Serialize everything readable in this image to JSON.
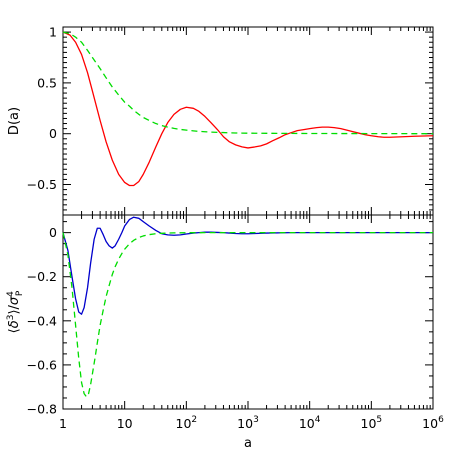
{
  "chart_data": [
    {
      "type": "line",
      "title": "",
      "xlabel": "",
      "ylabel": "D(a)",
      "xscale": "log",
      "xlim": [
        1,
        1000000
      ],
      "ylim": [
        -0.8,
        1.05
      ],
      "x_ticks": [
        1,
        10,
        100,
        1000,
        10000,
        100000,
        1000000
      ],
      "y_ticks": [
        -0.5,
        0,
        0.5,
        1
      ],
      "y_tick_labels": [
        "−0.5",
        "0",
        "0.5",
        "1"
      ],
      "grid": false,
      "legend": "none",
      "series": [
        {
          "color": "#ff0000",
          "dash": "solid",
          "x": [
            1,
            1.3,
            1.6,
            2,
            2.5,
            3,
            4,
            5,
            6.3,
            8,
            10,
            12,
            14,
            17,
            20,
            25,
            32,
            40,
            50,
            63,
            80,
            100,
            130,
            160,
            200,
            250,
            320,
            400,
            500,
            630,
            800,
            1000,
            1300,
            1600,
            2000,
            2500,
            3200,
            4000,
            5000,
            6300,
            8000,
            10000,
            13000,
            16000,
            20000,
            25000,
            32000,
            40000,
            50000,
            63000,
            80000,
            100000,
            130000,
            160000,
            200000,
            320000,
            500000,
            1000000
          ],
          "y": [
            1.0,
            0.97,
            0.9,
            0.78,
            0.6,
            0.42,
            0.13,
            -0.08,
            -0.26,
            -0.4,
            -0.48,
            -0.51,
            -0.51,
            -0.47,
            -0.4,
            -0.28,
            -0.13,
            0.0,
            0.11,
            0.19,
            0.24,
            0.26,
            0.25,
            0.22,
            0.17,
            0.11,
            0.04,
            -0.03,
            -0.08,
            -0.11,
            -0.13,
            -0.14,
            -0.13,
            -0.12,
            -0.1,
            -0.07,
            -0.04,
            -0.01,
            0.01,
            0.03,
            0.04,
            0.05,
            0.06,
            0.065,
            0.065,
            0.06,
            0.05,
            0.035,
            0.02,
            0.005,
            -0.01,
            -0.02,
            -0.03,
            -0.035,
            -0.035,
            -0.03,
            -0.025,
            -0.02
          ]
        },
        {
          "color": "#00dd00",
          "dash": "dashed",
          "x": [
            1,
            1.3,
            1.6,
            2,
            2.5,
            3,
            4,
            5,
            6.3,
            8,
            10,
            12,
            14,
            17,
            20,
            25,
            32,
            40,
            50,
            63,
            80,
            100,
            130,
            160,
            200,
            250,
            320,
            400,
            500,
            630,
            800,
            1000,
            2000,
            5000,
            10000,
            100000,
            1000000
          ],
          "y": [
            1.0,
            0.985,
            0.95,
            0.9,
            0.82,
            0.75,
            0.64,
            0.55,
            0.46,
            0.38,
            0.31,
            0.27,
            0.23,
            0.19,
            0.16,
            0.13,
            0.1,
            0.08,
            0.065,
            0.052,
            0.042,
            0.035,
            0.028,
            0.023,
            0.019,
            0.016,
            0.013,
            0.011,
            0.009,
            0.007,
            0.006,
            0.005,
            0.004,
            0.003,
            0.002,
            0.001,
            0.0
          ]
        }
      ]
    },
    {
      "type": "line",
      "title": "",
      "xlabel": "a",
      "ylabel_parts": {
        "open": "⟨",
        "delta": "δ",
        "exp3": "3",
        "close": "⟩",
        "slash": "/",
        "sigma": "σ",
        "sub": "P",
        "exp4": "4"
      },
      "xscale": "log",
      "xlim": [
        1,
        1000000
      ],
      "ylim": [
        -0.8,
        0.08
      ],
      "x_ticks": [
        1,
        10,
        100,
        1000,
        10000,
        100000,
        1000000
      ],
      "x_tick_labels": [
        {
          "base": "1",
          "exp": ""
        },
        {
          "base": "10",
          "exp": ""
        },
        {
          "base": "10",
          "exp": "2"
        },
        {
          "base": "10",
          "exp": "3"
        },
        {
          "base": "10",
          "exp": "4"
        },
        {
          "base": "10",
          "exp": "5"
        },
        {
          "base": "10",
          "exp": "6"
        }
      ],
      "y_ticks": [
        -0.8,
        -0.6,
        -0.4,
        -0.2,
        0
      ],
      "y_tick_labels": [
        "−0.8",
        "−0.6",
        "−0.4",
        "−0.2",
        "0"
      ],
      "grid": false,
      "legend": "none",
      "series": [
        {
          "color": "#0000cc",
          "dash": "solid",
          "x": [
            1,
            1.2,
            1.4,
            1.6,
            1.8,
            2.0,
            2.2,
            2.5,
            2.8,
            3.2,
            3.6,
            4.0,
            4.5,
            5.0,
            5.6,
            6.3,
            7.0,
            8.0,
            9.0,
            10,
            12,
            14,
            17,
            20,
            25,
            32,
            40,
            50,
            63,
            80,
            100,
            130,
            160,
            200,
            250,
            320,
            400,
            500,
            630,
            800,
            1000,
            1300,
            2000,
            5000,
            10000,
            100000,
            1000000
          ],
          "y": [
            0.0,
            -0.08,
            -0.2,
            -0.3,
            -0.36,
            -0.37,
            -0.34,
            -0.25,
            -0.14,
            -0.03,
            0.02,
            0.02,
            -0.01,
            -0.04,
            -0.06,
            -0.07,
            -0.06,
            -0.03,
            0.0,
            0.03,
            0.06,
            0.07,
            0.065,
            0.05,
            0.03,
            0.01,
            -0.005,
            -0.01,
            -0.012,
            -0.01,
            -0.006,
            -0.002,
            0.0,
            0.002,
            0.002,
            0.001,
            0.0,
            -0.002,
            -0.004,
            -0.005,
            -0.005,
            -0.004,
            -0.002,
            0.0,
            0.0,
            0.0,
            0.0
          ]
        },
        {
          "color": "#00dd00",
          "dash": "dashed",
          "x": [
            1,
            1.2,
            1.4,
            1.6,
            1.8,
            2.0,
            2.2,
            2.4,
            2.6,
            2.8,
            3.0,
            3.3,
            3.6,
            4.0,
            4.5,
            5.0,
            5.6,
            6.3,
            7.0,
            8.0,
            9.0,
            10,
            12,
            14,
            17,
            20,
            25,
            32,
            40,
            50,
            63,
            80,
            100,
            200,
            1000,
            10000,
            1000000
          ],
          "y": [
            0.0,
            -0.1,
            -0.25,
            -0.42,
            -0.57,
            -0.68,
            -0.73,
            -0.745,
            -0.73,
            -0.69,
            -0.64,
            -0.57,
            -0.5,
            -0.42,
            -0.35,
            -0.29,
            -0.24,
            -0.19,
            -0.155,
            -0.12,
            -0.095,
            -0.075,
            -0.05,
            -0.035,
            -0.022,
            -0.015,
            -0.009,
            -0.005,
            -0.003,
            -0.002,
            -0.0012,
            -0.0007,
            -0.0004,
            -0.0001,
            0.0,
            0.0,
            0.0
          ]
        }
      ]
    }
  ]
}
